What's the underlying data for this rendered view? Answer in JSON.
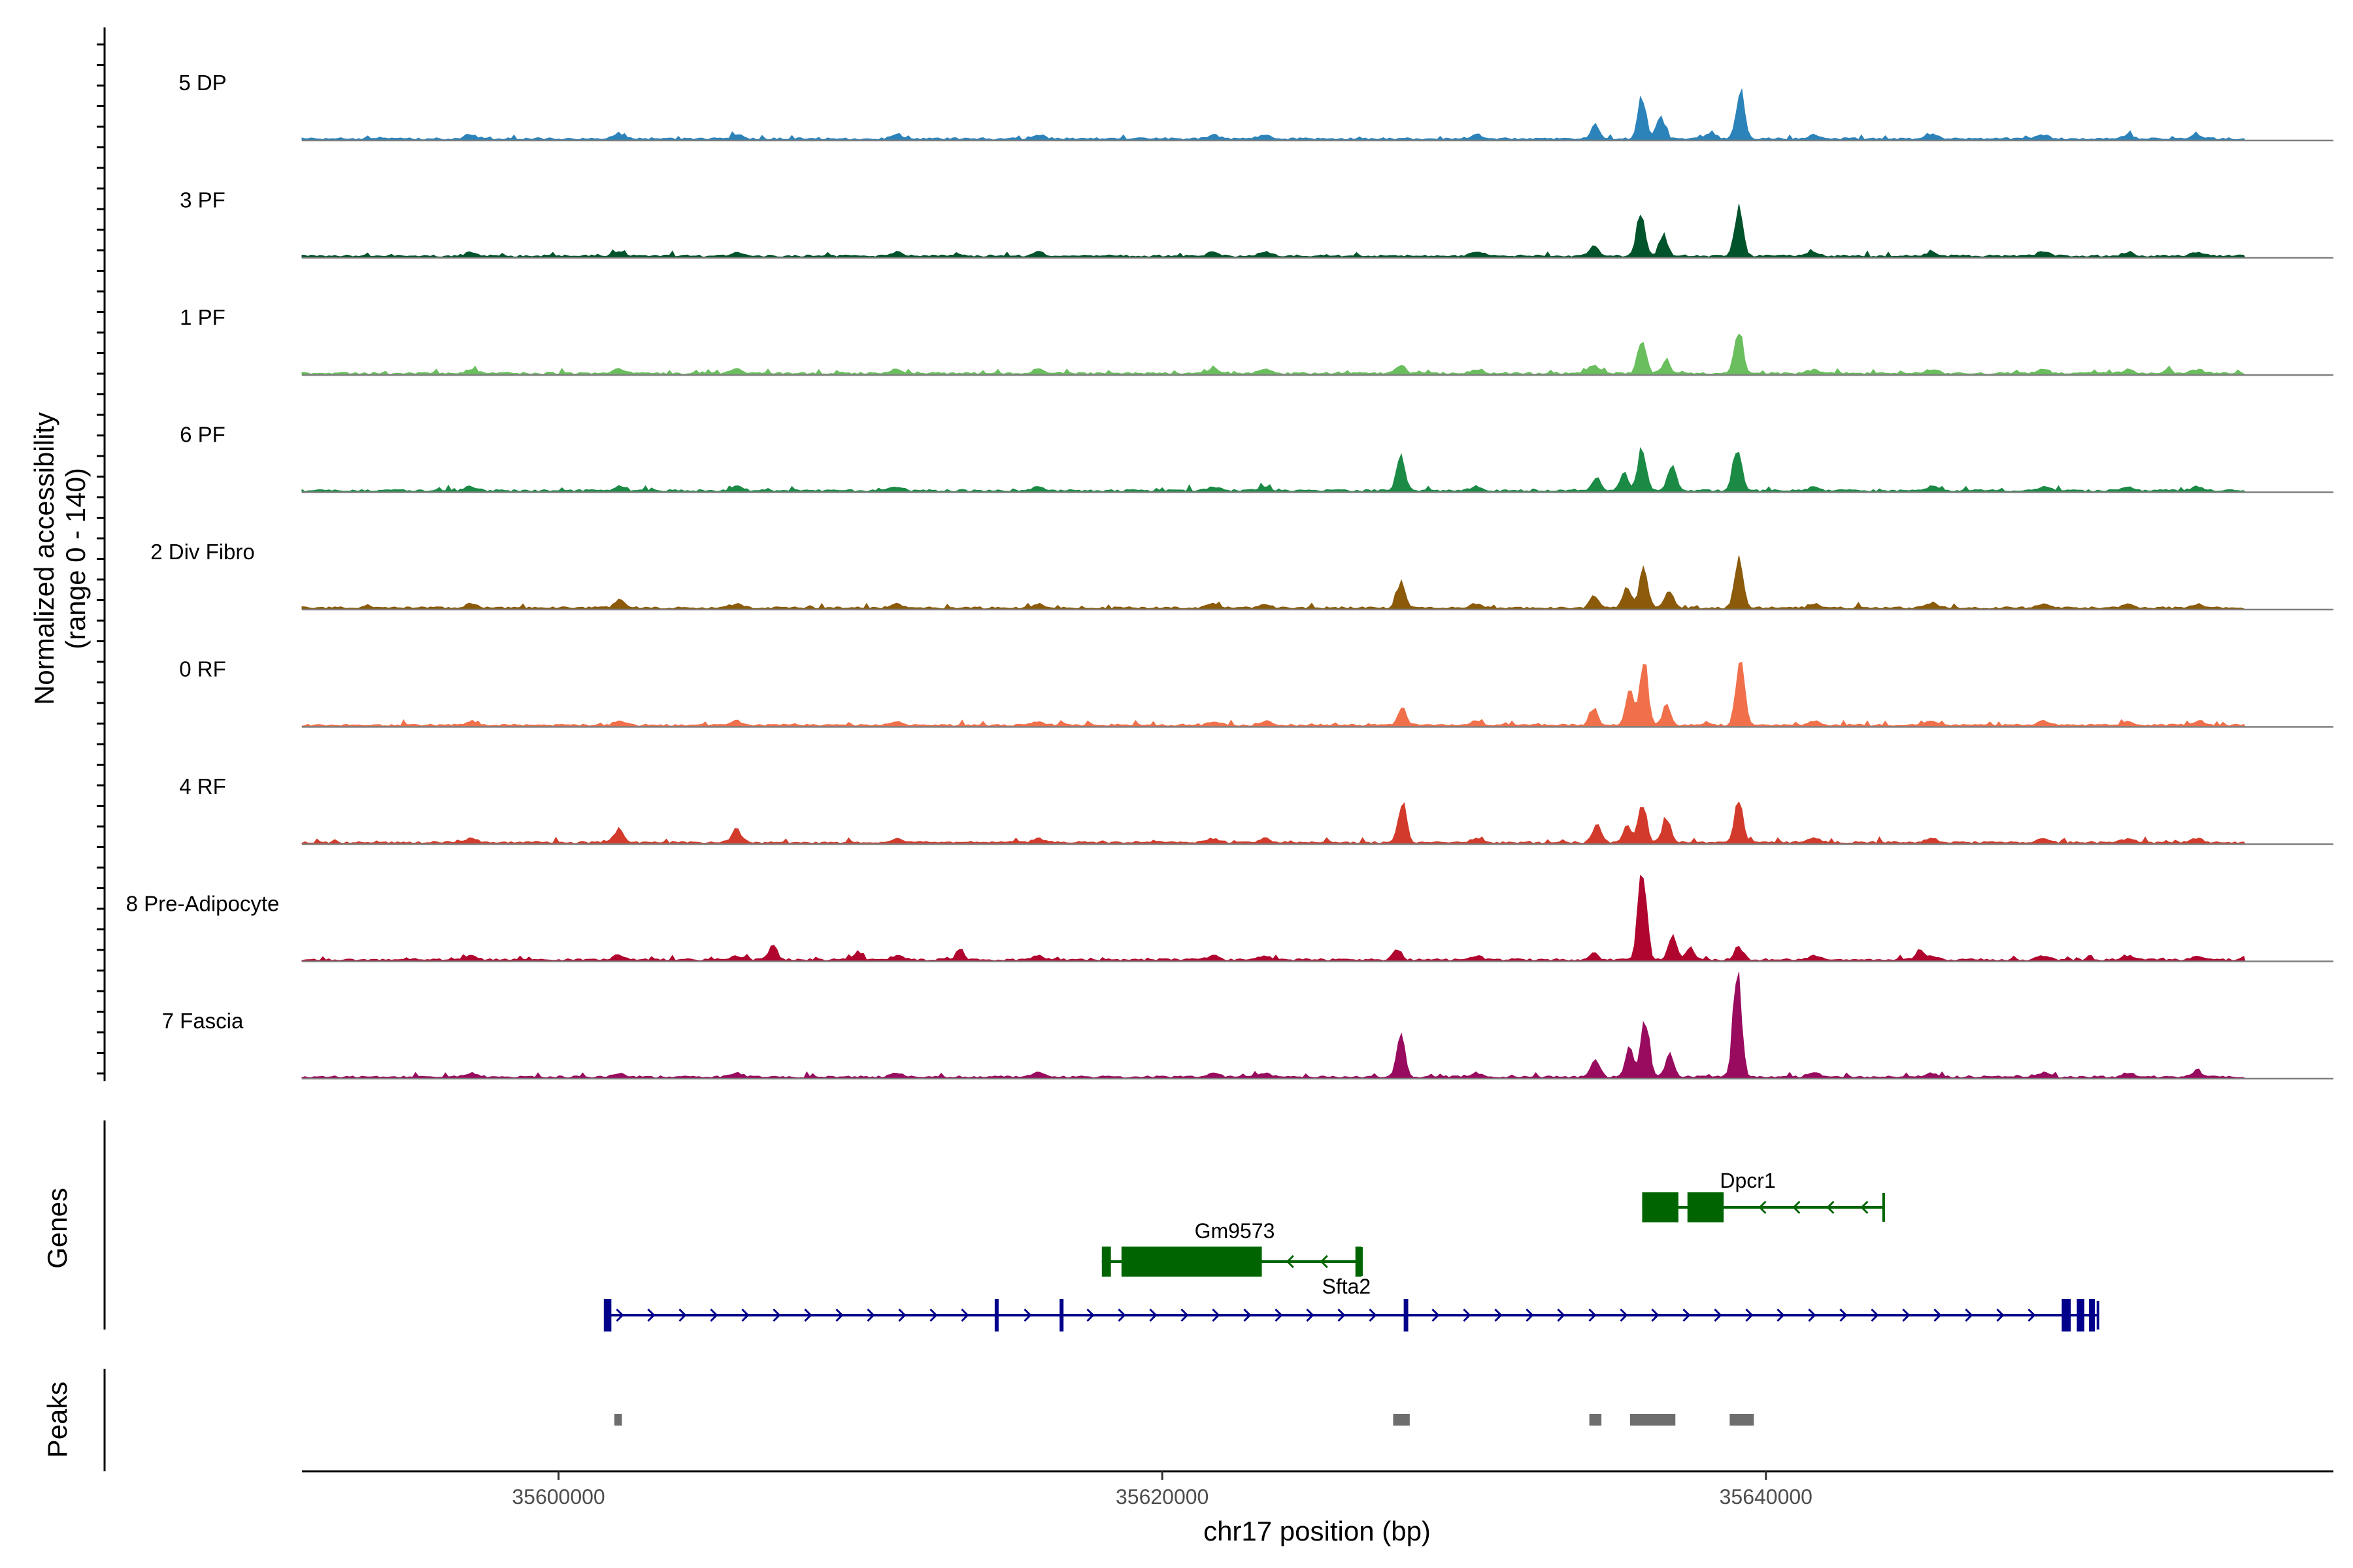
{
  "chart_data": {
    "type": "area",
    "title": "",
    "ylabel_line1": "Normalized accessibility",
    "ylabel_line2": "(range 0 - 140)",
    "ylim": [
      0,
      140
    ],
    "xlabel": "chr17 position (bp)",
    "xlim": [
      35591500,
      35658800
    ],
    "xticks": [
      {
        "value": 35600000,
        "label": "35600000"
      },
      {
        "value": 35620000,
        "label": "35620000"
      },
      {
        "value": 35640000,
        "label": "35640000"
      }
    ],
    "tracks": [
      {
        "name": "5 DP",
        "color": "#2b83ba",
        "peaks": [
          {
            "pos": 35634350,
            "h": 18
          },
          {
            "pos": 35635900,
            "h": 55
          },
          {
            "pos": 35636500,
            "h": 30
          },
          {
            "pos": 35638200,
            "h": 10
          },
          {
            "pos": 35639150,
            "h": 62
          }
        ]
      },
      {
        "name": "3 PF",
        "color": "#00532b",
        "peaks": [
          {
            "pos": 35634300,
            "h": 14
          },
          {
            "pos": 35635850,
            "h": 62
          },
          {
            "pos": 35636600,
            "h": 28
          },
          {
            "pos": 35639100,
            "h": 60
          }
        ]
      },
      {
        "name": "1 PF",
        "color": "#6abe5e",
        "peaks": [
          {
            "pos": 35627900,
            "h": 12
          },
          {
            "pos": 35634300,
            "h": 13
          },
          {
            "pos": 35635900,
            "h": 48
          },
          {
            "pos": 35636700,
            "h": 18
          },
          {
            "pos": 35639100,
            "h": 55
          },
          {
            "pos": 35653300,
            "h": 6
          }
        ]
      },
      {
        "name": "6 PF",
        "color": "#1a8a45",
        "peaks": [
          {
            "pos": 35627900,
            "h": 45
          },
          {
            "pos": 35634400,
            "h": 18
          },
          {
            "pos": 35635300,
            "h": 22
          },
          {
            "pos": 35635900,
            "h": 60
          },
          {
            "pos": 35636900,
            "h": 35
          },
          {
            "pos": 35639050,
            "h": 60
          }
        ]
      },
      {
        "name": "2 Div Fibro",
        "color": "#8b5a0a",
        "peaks": [
          {
            "pos": 35602000,
            "h": 6
          },
          {
            "pos": 35627900,
            "h": 34
          },
          {
            "pos": 35634300,
            "h": 16
          },
          {
            "pos": 35635400,
            "h": 28
          },
          {
            "pos": 35635950,
            "h": 58
          },
          {
            "pos": 35636800,
            "h": 22
          },
          {
            "pos": 35639100,
            "h": 65
          }
        ]
      },
      {
        "name": "0 RF",
        "color": "#f0704b",
        "peaks": [
          {
            "pos": 35627950,
            "h": 24
          },
          {
            "pos": 35634300,
            "h": 21
          },
          {
            "pos": 35635500,
            "h": 45
          },
          {
            "pos": 35635950,
            "h": 80
          },
          {
            "pos": 35636700,
            "h": 24
          },
          {
            "pos": 35639150,
            "h": 95
          }
        ]
      },
      {
        "name": "4 RF",
        "color": "#d23b2b",
        "peaks": [
          {
            "pos": 35602000,
            "h": 13
          },
          {
            "pos": 35605900,
            "h": 12
          },
          {
            "pos": 35627950,
            "h": 55
          },
          {
            "pos": 35634400,
            "h": 22
          },
          {
            "pos": 35635400,
            "h": 20
          },
          {
            "pos": 35635900,
            "h": 55
          },
          {
            "pos": 35636700,
            "h": 32
          },
          {
            "pos": 35639100,
            "h": 60
          }
        ]
      },
      {
        "name": "8 Pre-Adipocyte",
        "color": "#b0052e",
        "peaks": [
          {
            "pos": 35607100,
            "h": 18
          },
          {
            "pos": 35609900,
            "h": 10
          },
          {
            "pos": 35613300,
            "h": 12
          },
          {
            "pos": 35627800,
            "h": 14
          },
          {
            "pos": 35634300,
            "h": 10
          },
          {
            "pos": 35635900,
            "h": 125
          },
          {
            "pos": 35636900,
            "h": 30
          },
          {
            "pos": 35637500,
            "h": 14
          },
          {
            "pos": 35639100,
            "h": 18
          },
          {
            "pos": 35645100,
            "h": 12
          },
          {
            "pos": 35656000,
            "h": 12
          }
        ]
      },
      {
        "name": "7 Fascia",
        "color": "#980b5e",
        "peaks": [
          {
            "pos": 35627900,
            "h": 55
          },
          {
            "pos": 35634350,
            "h": 25
          },
          {
            "pos": 35635500,
            "h": 38
          },
          {
            "pos": 35636000,
            "h": 72
          },
          {
            "pos": 35636800,
            "h": 30
          },
          {
            "pos": 35639050,
            "h": 140
          }
        ]
      }
    ],
    "genes_label": "Genes",
    "genes": [
      {
        "name": "Dpcr1",
        "color": "#006400",
        "start": 35635900,
        "end": 35643900,
        "strand": "-",
        "exons": [
          [
            35635900,
            35637100
          ],
          [
            35637400,
            35638600
          ]
        ],
        "row": 0
      },
      {
        "name": "Gm9573",
        "color": "#006400",
        "start": 35618000,
        "end": 35626600,
        "strand": "-",
        "exons": [
          [
            35618000,
            35618300
          ],
          [
            35618650,
            35623300
          ],
          [
            35626400,
            35626600
          ]
        ],
        "row": 1
      },
      {
        "name": "Sfta2",
        "color": "#006400",
        "row": 1,
        "label_only": true
      },
      {
        "name": "",
        "color": "#00008b",
        "start": 35601600,
        "end": 35651000,
        "strand": "+",
        "exons": [
          [
            35601500,
            35601750
          ],
          [
            35614450,
            35614500
          ],
          [
            35616600,
            35616700
          ],
          [
            35628000,
            35628150
          ],
          [
            35649800,
            35650100
          ],
          [
            35650300,
            35650550
          ],
          [
            35650700,
            35650900
          ]
        ],
        "row": 2
      }
    ],
    "peaks_label": "Peaks",
    "peak_regions": [
      [
        35601850,
        35602100
      ],
      [
        35627650,
        35628200
      ],
      [
        35634150,
        35634550
      ],
      [
        35635500,
        35637000
      ],
      [
        35638800,
        35639600
      ]
    ]
  }
}
